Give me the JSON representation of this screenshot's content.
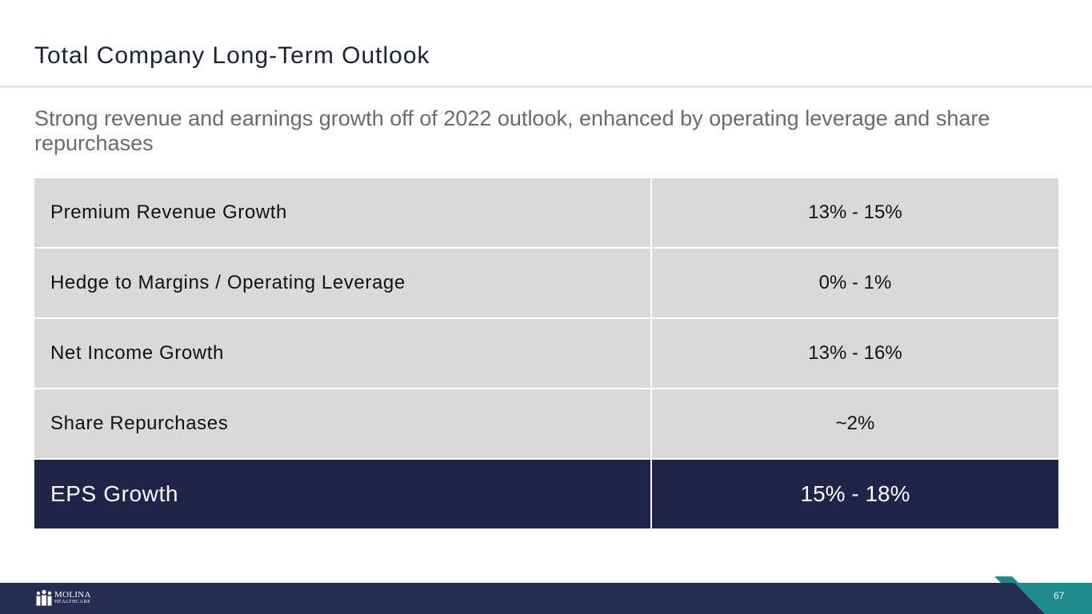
{
  "slide": {
    "title": "Total Company Long-Term Outlook",
    "subtitle": "Strong revenue and earnings growth off of 2022 outlook, enhanced by operating leverage and share repurchases"
  },
  "table": {
    "rows": [
      {
        "label": "Premium Revenue Growth",
        "value": "13% - 15%"
      },
      {
        "label": "Hedge to Margins / Operating Leverage",
        "value": "0% - 1%"
      },
      {
        "label": "Net Income Growth",
        "value": "13% - 16%"
      },
      {
        "label": "Share Repurchases",
        "value": "~2%"
      },
      {
        "label": "EPS Growth",
        "value": "15% - 18%"
      }
    ]
  },
  "footer": {
    "logo_main": "MOLINA",
    "logo_sub": "HEALTHCARE",
    "logo_icon": "people-icon",
    "page_number": "67"
  },
  "colors": {
    "navy": "#1e2548",
    "footer_navy": "#252d52",
    "teal": "#1e8c8e",
    "row_gray": "#d9d9d9"
  }
}
